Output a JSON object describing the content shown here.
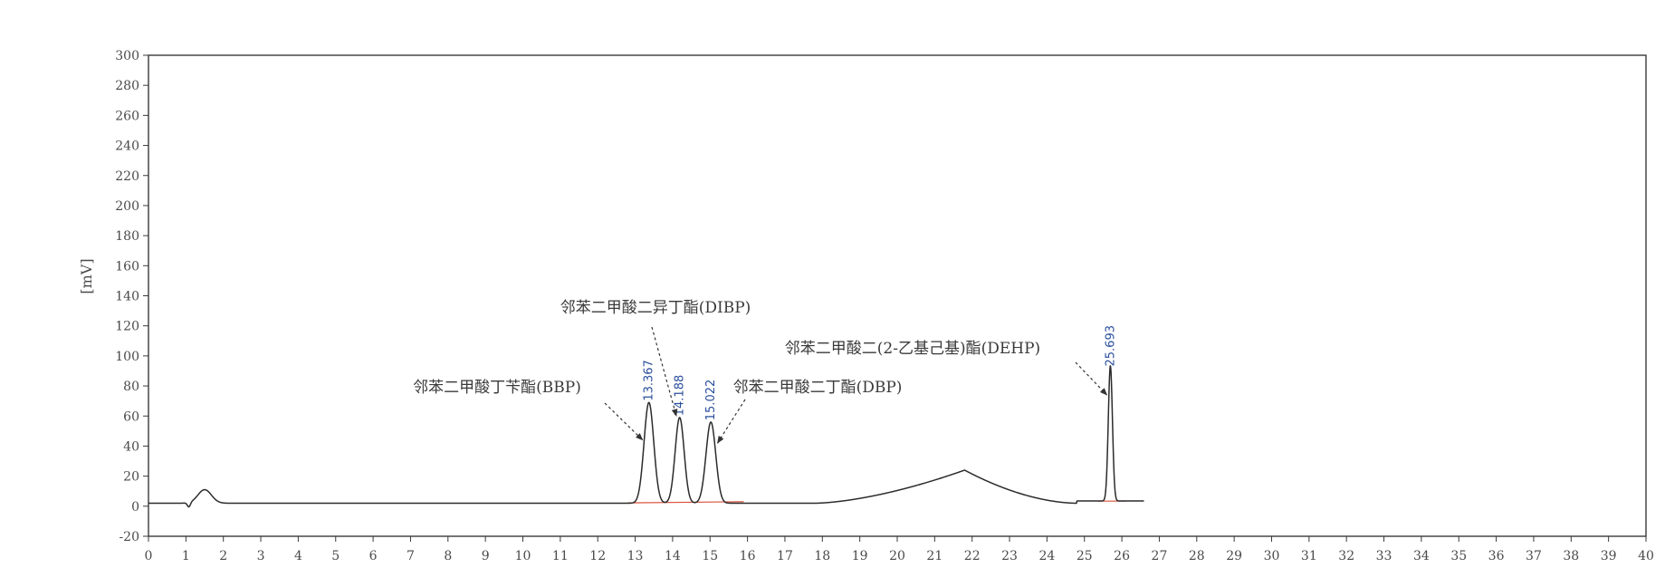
{
  "chart_data": {
    "type": "line",
    "title": "",
    "xlabel": "",
    "ylabel": "[mV]",
    "xlim": [
      0,
      40
    ],
    "ylim": [
      -20,
      300
    ],
    "xticks": [
      0,
      1,
      2,
      3,
      4,
      5,
      6,
      7,
      8,
      9,
      10,
      11,
      12,
      13,
      14,
      15,
      16,
      17,
      18,
      19,
      20,
      21,
      22,
      23,
      24,
      25,
      26,
      27,
      28,
      29,
      30,
      31,
      32,
      33,
      34,
      35,
      36,
      37,
      38,
      39,
      40
    ],
    "yticks": [
      -20,
      0,
      20,
      40,
      60,
      80,
      100,
      120,
      140,
      160,
      180,
      200,
      220,
      240,
      260,
      280,
      300
    ],
    "grid": false,
    "colors": {
      "signal": "#2b2b2b",
      "baseline": "#d9503a",
      "peak_label": "#2a4f9c",
      "annotation": "#3a3a3a"
    },
    "baseline": 2,
    "features": [
      {
        "kind": "bump",
        "center": 1.5,
        "height": 9,
        "width": 0.18
      },
      {
        "kind": "dip",
        "center": 1.08,
        "depth": 3,
        "width": 0.04
      },
      {
        "kind": "peak",
        "rt": 13.367,
        "height": 67,
        "width": 0.13
      },
      {
        "kind": "peak",
        "rt": 14.188,
        "height": 57,
        "width": 0.12
      },
      {
        "kind": "peak",
        "rt": 15.022,
        "height": 54,
        "width": 0.13
      },
      {
        "kind": "hump",
        "start": 17.8,
        "apex": 21.8,
        "end": 24.8,
        "height": 22
      },
      {
        "kind": "peak",
        "rt": 25.693,
        "height": 90,
        "width": 0.055
      }
    ],
    "end_x": 26.6,
    "peak_labels": [
      {
        "text": "13.367",
        "x": 13.367,
        "y": 70
      },
      {
        "text": "14.188",
        "x": 14.188,
        "y": 60
      },
      {
        "text": "15.022",
        "x": 15.022,
        "y": 57
      },
      {
        "text": "25.693",
        "x": 25.693,
        "y": 93
      }
    ],
    "annotations": [
      {
        "text": "邻苯二甲酸丁苄酯(BBP)",
        "target": [
          13.2,
          44
        ]
      },
      {
        "text": "邻苯二甲酸二异丁酯(DIBP)",
        "target": [
          14.1,
          60
        ]
      },
      {
        "text": "邻苯二甲酸二丁酯(DBP)",
        "target": [
          15.2,
          42
        ]
      },
      {
        "text": "邻苯二甲酸二(2-乙基己基)酯(DEHP)",
        "target": [
          25.6,
          74
        ]
      }
    ]
  }
}
